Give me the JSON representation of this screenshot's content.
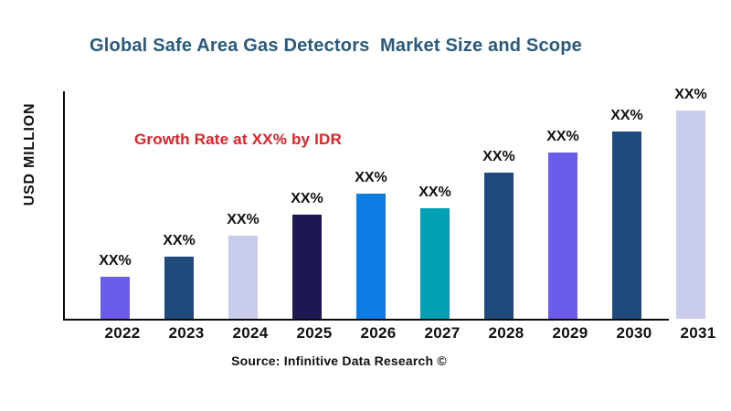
{
  "page": {
    "background": "#ffffff",
    "title": "Global Safe Area Gas Detectors  Market Size and Scope",
    "title_color": "#295A7D",
    "annotation": "Growth Rate at XX% by IDR",
    "annotation_color": "#E22128",
    "y_axis_label": "USD MILLION",
    "source": "Source: Infinitive Data Research ©",
    "axis_color": "#0a0a0a"
  },
  "chart_data": {
    "type": "bar",
    "title": "Global Safe Area Gas Detectors  Market Size and Scope",
    "xlabel": "",
    "ylabel": "USD MILLION",
    "categories": [
      "2022",
      "2023",
      "2024",
      "2025",
      "2026",
      "2027",
      "2028",
      "2029",
      "2030",
      "2031"
    ],
    "values": [
      20,
      30,
      40,
      50,
      60,
      53,
      70,
      80,
      90,
      100
    ],
    "value_unit": "relative index — actual values masked as XX% in the chart",
    "bar_labels": [
      "XX%",
      "XX%",
      "XX%",
      "XX%",
      "XX%",
      "XX%",
      "XX%",
      "XX%",
      "XX%",
      "XX%"
    ],
    "bar_colors": [
      "#6B5CE9",
      "#1F4B7C",
      "#C9CCEC",
      "#1E1852",
      "#0F7CE4",
      "#02A0B2",
      "#1F4B7C",
      "#6B5CE9",
      "#1F4B7C",
      "#C9CCEC"
    ],
    "annotation": "Growth Rate at XX% by IDR",
    "legend": "none",
    "grid": false,
    "ylim": [
      0,
      110
    ]
  }
}
